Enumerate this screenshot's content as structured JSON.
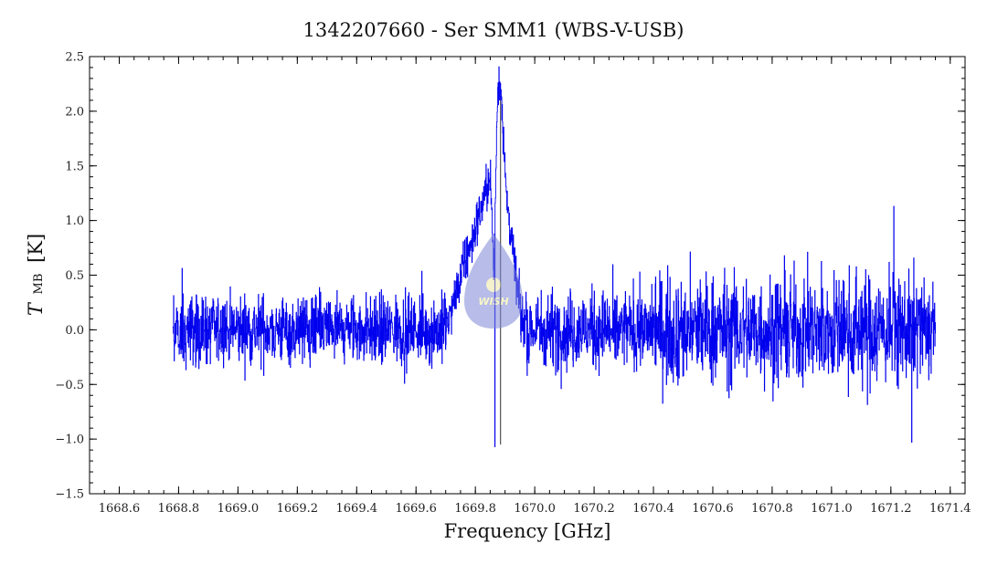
{
  "chart_data": {
    "type": "line",
    "title": "1342207660 - Ser SMM1 (WBS-V-USB)",
    "xlabel": "Frequency [GHz]",
    "ylabel_main": "T",
    "ylabel_sub": "MB",
    "ylabel_unit": "[K]",
    "xlim": [
      1668.5,
      1671.45
    ],
    "ylim": [
      -1.5,
      2.5
    ],
    "x_ticks": [
      1668.6,
      1668.8,
      1669.0,
      1669.2,
      1669.4,
      1669.6,
      1669.8,
      1670.0,
      1670.2,
      1670.4,
      1670.6,
      1670.8,
      1671.0,
      1671.2,
      1671.4
    ],
    "x_tick_labels": [
      "1668.6",
      "1668.8",
      "1669.0",
      "1669.2",
      "1669.4",
      "1669.6",
      "1669.8",
      "1670.0",
      "1670.2",
      "1670.4",
      "1670.6",
      "1670.8",
      "1671.0",
      "1671.2",
      "1671.4"
    ],
    "y_ticks": [
      -1.5,
      -1.0,
      -0.5,
      0.0,
      0.5,
      1.0,
      1.5,
      2.0,
      2.5
    ],
    "y_tick_labels": [
      "−1.5",
      "−1.0",
      "−0.5",
      "0.0",
      "0.5",
      "1.0",
      "1.5",
      "2.0",
      "2.5"
    ],
    "grid": false,
    "series_color": "#0000ee",
    "series": [
      {
        "x_start": 1668.78,
        "x_end": 1671.35,
        "noise_segments": [
          {
            "x": [
              1668.78,
              1669.7
            ],
            "amplitude": 0.18
          },
          {
            "x": [
              1669.95,
              1670.4
            ],
            "amplitude": 0.2
          },
          {
            "x": [
              1670.4,
              1671.35
            ],
            "amplitude": 0.28
          }
        ],
        "features": [
          {
            "x": [
              1669.7,
              1669.86,
              1669.875,
              1669.885,
              1669.905,
              1669.94,
              1669.955,
              1669.975
            ],
            "y": [
              0.0,
              1.5,
              2.25,
              2.25,
              1.2,
              0.4,
              0.1,
              0.0
            ]
          },
          {
            "x": [
              1669.85,
              1669.862,
              1669.875
            ],
            "y": [
              0.0,
              -1.05,
              0.0
            ]
          }
        ],
        "extremes": [
          {
            "x": 1669.88,
            "y": 2.27
          },
          {
            "x": 1671.21,
            "y": 1.13
          },
          {
            "x": 1669.865,
            "y": -1.07
          },
          {
            "x": 1671.27,
            "y": -1.03
          }
        ],
        "center_marker_x": 1669.885
      }
    ]
  },
  "watermark": {
    "text": "WISH",
    "color": "#7d86d6"
  }
}
